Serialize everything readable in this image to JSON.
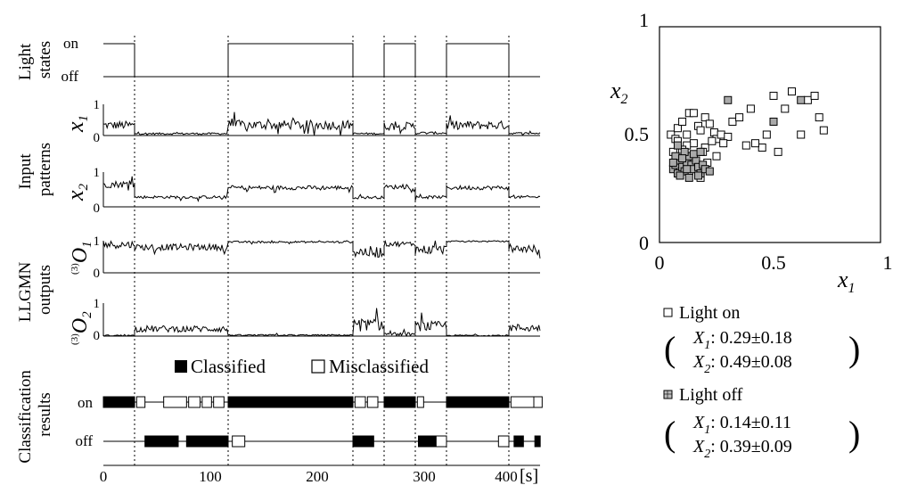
{
  "left": {
    "rows": {
      "light": {
        "title": [
          "Light",
          "states"
        ],
        "ticks": [
          "on",
          "off"
        ]
      },
      "input": {
        "title": [
          "Input",
          "patterns"
        ]
      },
      "llgmn": {
        "title": [
          "LLGMN",
          "outputs"
        ]
      },
      "classification": {
        "title": [
          "Classification",
          "results"
        ],
        "ticks": [
          "on",
          "off"
        ]
      }
    },
    "x1": {
      "label": "x",
      "sub": "1",
      "ticks": [
        "1",
        "0"
      ]
    },
    "x2": {
      "label": "x",
      "sub": "2",
      "ticks": [
        "1",
        "0"
      ]
    },
    "o1": {
      "sup": "(3)",
      "label": "O",
      "sub": "1",
      "ticks": [
        "1",
        "0"
      ]
    },
    "o2": {
      "sup": "(3)",
      "label": "O",
      "sub": "2",
      "ticks": [
        "1",
        "0"
      ]
    },
    "legend": {
      "classified": "Classified",
      "misclassified": "Misclassified"
    },
    "time_ticks": [
      "0",
      "100",
      "200",
      "300",
      "400"
    ],
    "time_unit": "[s]"
  },
  "right": {
    "legend": {
      "on_label": "Light on",
      "on_x1": ": 0.29±0.18",
      "on_x2": ": 0.49±0.08",
      "off_label": "Light off",
      "off_x1": ": 0.14±0.11",
      "off_x2": ": 0.39±0.09",
      "X": "X",
      "sub1": "1",
      "sub2": "2"
    }
  },
  "chart_data": [
    {
      "type": "line",
      "subtype": "step",
      "xlim": [
        0,
        420
      ],
      "ylim": [
        0,
        1
      ],
      "light_states": [
        {
          "state": "on",
          "from": 0,
          "to": 30
        },
        {
          "state": "off",
          "from": 30,
          "to": 120
        },
        {
          "state": "on",
          "from": 120,
          "to": 240
        },
        {
          "state": "off",
          "from": 240,
          "to": 270
        },
        {
          "state": "on",
          "from": 270,
          "to": 300
        },
        {
          "state": "off",
          "from": 300,
          "to": 330
        },
        {
          "state": "on",
          "from": 330,
          "to": 390
        },
        {
          "state": "off",
          "from": 390,
          "to": 420
        }
      ],
      "switch_times": [
        30,
        120,
        240,
        270,
        300,
        330,
        390
      ]
    },
    {
      "type": "line",
      "xlim": [
        0,
        420
      ],
      "ylim": [
        0,
        1
      ],
      "series": [
        {
          "levels": [
            {
              "from": 0,
              "to": 30,
              "mean": 0.33,
              "noise": 0.13
            },
            {
              "from": 30,
              "to": 120,
              "mean": 0.06,
              "noise": 0.03
            },
            {
              "from": 120,
              "to": 240,
              "mean": 0.34,
              "noise": 0.15
            },
            {
              "from": 240,
              "to": 270,
              "mean": 0.06,
              "noise": 0.03
            },
            {
              "from": 270,
              "to": 300,
              "mean": 0.3,
              "noise": 0.13
            },
            {
              "from": 300,
              "to": 330,
              "mean": 0.08,
              "noise": 0.04
            },
            {
              "from": 330,
              "to": 390,
              "mean": 0.33,
              "noise": 0.14
            },
            {
              "from": 390,
              "to": 420,
              "mean": 0.07,
              "noise": 0.03
            }
          ]
        }
      ]
    },
    {
      "type": "line",
      "xlim": [
        0,
        420
      ],
      "ylim": [
        0,
        1
      ],
      "series": [
        {
          "levels": [
            {
              "from": 0,
              "to": 30,
              "mean": 0.65,
              "noise": 0.1
            },
            {
              "from": 30,
              "to": 120,
              "mean": 0.28,
              "noise": 0.04
            },
            {
              "from": 120,
              "to": 240,
              "mean": 0.55,
              "noise": 0.06
            },
            {
              "from": 240,
              "to": 270,
              "mean": 0.27,
              "noise": 0.04
            },
            {
              "from": 270,
              "to": 300,
              "mean": 0.57,
              "noise": 0.06
            },
            {
              "from": 300,
              "to": 330,
              "mean": 0.28,
              "noise": 0.04
            },
            {
              "from": 330,
              "to": 390,
              "mean": 0.55,
              "noise": 0.06
            },
            {
              "from": 390,
              "to": 420,
              "mean": 0.28,
              "noise": 0.04
            }
          ]
        }
      ]
    },
    {
      "type": "line",
      "xlim": [
        0,
        420
      ],
      "ylim": [
        0,
        1
      ],
      "series": [
        {
          "levels": [
            {
              "from": 0,
              "to": 30,
              "mean": 0.88,
              "noise": 0.12
            },
            {
              "from": 30,
              "to": 120,
              "mean": 0.8,
              "noise": 0.1
            },
            {
              "from": 120,
              "to": 240,
              "mean": 0.96,
              "noise": 0.03
            },
            {
              "from": 240,
              "to": 270,
              "mean": 0.65,
              "noise": 0.18
            },
            {
              "from": 270,
              "to": 300,
              "mean": 0.9,
              "noise": 0.08
            },
            {
              "from": 300,
              "to": 330,
              "mean": 0.72,
              "noise": 0.15
            },
            {
              "from": 330,
              "to": 390,
              "mean": 0.98,
              "noise": 0.02
            },
            {
              "from": 390,
              "to": 420,
              "mean": 0.75,
              "noise": 0.12
            }
          ]
        }
      ]
    },
    {
      "type": "line",
      "xlim": [
        0,
        420
      ],
      "ylim": [
        0,
        1
      ],
      "series": [
        {
          "levels": [
            {
              "from": 0,
              "to": 30,
              "mean": 0.02,
              "noise": 0.02
            },
            {
              "from": 30,
              "to": 120,
              "mean": 0.22,
              "noise": 0.1
            },
            {
              "from": 120,
              "to": 240,
              "mean": 0.03,
              "noise": 0.02
            },
            {
              "from": 240,
              "to": 270,
              "mean": 0.35,
              "noise": 0.18
            },
            {
              "from": 270,
              "to": 300,
              "mean": 0.06,
              "noise": 0.05
            },
            {
              "from": 300,
              "to": 330,
              "mean": 0.3,
              "noise": 0.15
            },
            {
              "from": 330,
              "to": 390,
              "mean": 0.02,
              "noise": 0.02
            },
            {
              "from": 390,
              "to": 420,
              "mean": 0.25,
              "noise": 0.12
            }
          ]
        }
      ]
    },
    {
      "type": "bar",
      "xlim": [
        0,
        420
      ],
      "rows": [
        "on",
        "off"
      ],
      "series": [
        {
          "name": "Classified",
          "segments": [
            {
              "row": "on",
              "from": 0,
              "to": 30
            },
            {
              "row": "on",
              "from": 120,
              "to": 240
            },
            {
              "row": "on",
              "from": 270,
              "to": 300
            },
            {
              "row": "on",
              "from": 330,
              "to": 390
            },
            {
              "row": "off",
              "from": 40,
              "to": 72
            },
            {
              "row": "off",
              "from": 80,
              "to": 120
            },
            {
              "row": "off",
              "from": 240,
              "to": 260
            },
            {
              "row": "off",
              "from": 303,
              "to": 330
            },
            {
              "row": "off",
              "from": 395,
              "to": 404
            },
            {
              "row": "off",
              "from": 415,
              "to": 420
            }
          ]
        },
        {
          "name": "Misclassified",
          "segments": [
            {
              "row": "on",
              "from": 32,
              "to": 40
            },
            {
              "row": "on",
              "from": 58,
              "to": 80
            },
            {
              "row": "on",
              "from": 82,
              "to": 93
            },
            {
              "row": "on",
              "from": 95,
              "to": 104
            },
            {
              "row": "on",
              "from": 106,
              "to": 116
            },
            {
              "row": "on",
              "from": 242,
              "to": 252
            },
            {
              "row": "on",
              "from": 254,
              "to": 264
            },
            {
              "row": "on",
              "from": 302,
              "to": 308
            },
            {
              "row": "on",
              "from": 392,
              "to": 414
            },
            {
              "row": "on",
              "from": 414,
              "to": 422
            },
            {
              "row": "off",
              "from": 124,
              "to": 136
            },
            {
              "row": "off",
              "from": 320,
              "to": 330
            },
            {
              "row": "off",
              "from": 380,
              "to": 390
            }
          ]
        }
      ]
    },
    {
      "type": "scatter",
      "xlim": [
        0,
        1
      ],
      "ylim": [
        0,
        1
      ],
      "xlabel": "x",
      "ylabel": "x",
      "xticks": [
        "0",
        "0.5",
        "1"
      ],
      "yticks": [
        "0",
        "0.5",
        "1"
      ],
      "series": [
        {
          "name": "Light on",
          "points": [
            [
              0.05,
              0.5
            ],
            [
              0.07,
              0.48
            ],
            [
              0.08,
              0.53
            ],
            [
              0.1,
              0.56
            ],
            [
              0.12,
              0.5
            ],
            [
              0.13,
              0.6
            ],
            [
              0.15,
              0.6
            ],
            [
              0.17,
              0.54
            ],
            [
              0.18,
              0.52
            ],
            [
              0.2,
              0.58
            ],
            [
              0.22,
              0.55
            ],
            [
              0.24,
              0.51
            ],
            [
              0.25,
              0.48
            ],
            [
              0.27,
              0.5
            ],
            [
              0.3,
              0.49
            ],
            [
              0.32,
              0.56
            ],
            [
              0.35,
              0.58
            ],
            [
              0.4,
              0.62
            ],
            [
              0.45,
              0.44
            ],
            [
              0.47,
              0.5
            ],
            [
              0.5,
              0.68
            ],
            [
              0.52,
              0.42
            ],
            [
              0.55,
              0.62
            ],
            [
              0.58,
              0.7
            ],
            [
              0.62,
              0.5
            ],
            [
              0.65,
              0.66
            ],
            [
              0.68,
              0.68
            ],
            [
              0.7,
              0.58
            ],
            [
              0.72,
              0.52
            ],
            [
              0.42,
              0.46
            ],
            [
              0.38,
              0.45
            ],
            [
              0.28,
              0.46
            ],
            [
              0.2,
              0.44
            ],
            [
              0.15,
              0.46
            ],
            [
              0.12,
              0.45
            ],
            [
              0.08,
              0.47
            ],
            [
              0.1,
              0.43
            ],
            [
              0.14,
              0.4
            ],
            [
              0.19,
              0.42
            ],
            [
              0.23,
              0.47
            ],
            [
              0.06,
              0.42
            ],
            [
              0.11,
              0.38
            ],
            [
              0.16,
              0.35
            ],
            [
              0.21,
              0.37
            ],
            [
              0.25,
              0.4
            ],
            [
              0.09,
              0.34
            ],
            [
              0.13,
              0.33
            ],
            [
              0.18,
              0.3
            ]
          ]
        },
        {
          "name": "Light off",
          "points": [
            [
              0.06,
              0.34
            ],
            [
              0.07,
              0.36
            ],
            [
              0.08,
              0.32
            ],
            [
              0.09,
              0.38
            ],
            [
              0.1,
              0.35
            ],
            [
              0.11,
              0.33
            ],
            [
              0.12,
              0.37
            ],
            [
              0.13,
              0.4
            ],
            [
              0.14,
              0.36
            ],
            [
              0.15,
              0.34
            ],
            [
              0.16,
              0.38
            ],
            [
              0.17,
              0.35
            ],
            [
              0.18,
              0.32
            ],
            [
              0.19,
              0.36
            ],
            [
              0.2,
              0.34
            ],
            [
              0.07,
              0.4
            ],
            [
              0.09,
              0.31
            ],
            [
              0.11,
              0.42
            ],
            [
              0.13,
              0.3
            ],
            [
              0.15,
              0.41
            ],
            [
              0.17,
              0.31
            ],
            [
              0.1,
              0.39
            ],
            [
              0.12,
              0.34
            ],
            [
              0.3,
              0.66
            ],
            [
              0.5,
              0.56
            ],
            [
              0.62,
              0.66
            ],
            [
              0.18,
              0.42
            ],
            [
              0.08,
              0.45
            ],
            [
              0.06,
              0.37
            ],
            [
              0.22,
              0.33
            ]
          ]
        }
      ]
    }
  ]
}
